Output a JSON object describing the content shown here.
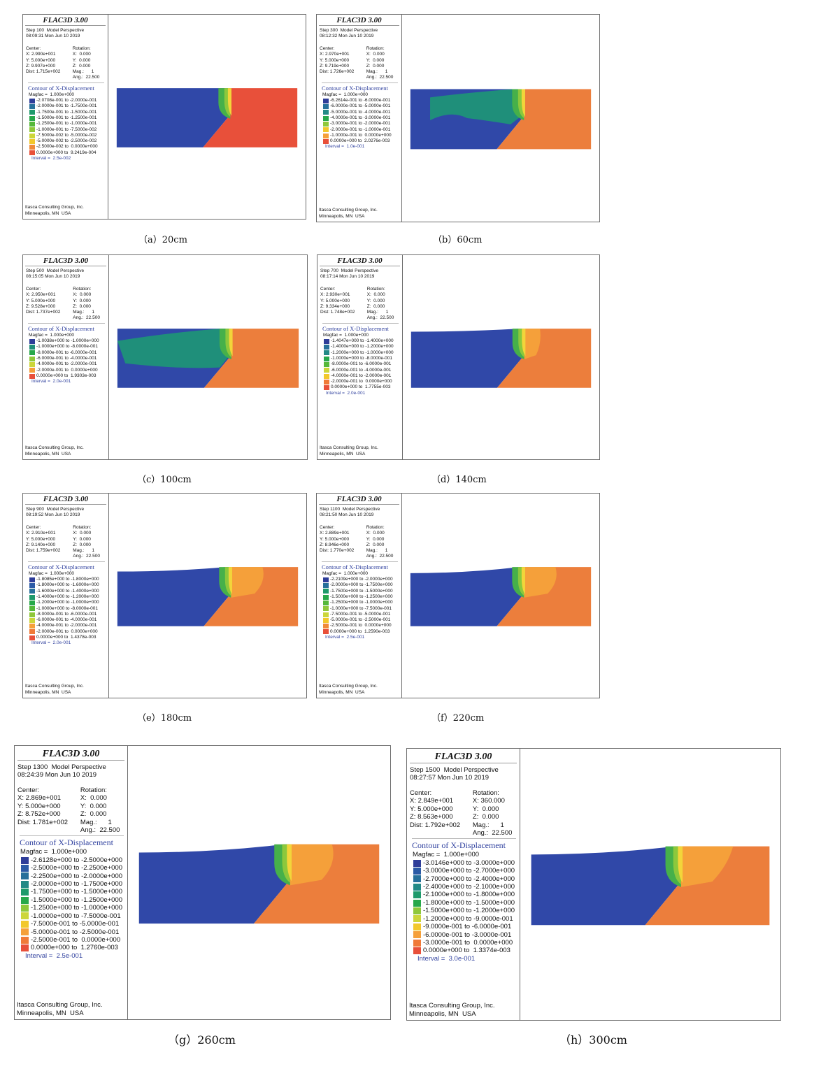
{
  "common": {
    "app_title": "FLAC3D 3.00",
    "center_label": "Center:",
    "rotation_label": "Rotation:",
    "contour_title": "Contour of X-Displacement",
    "magfac": "Magfac =  1.000e+000",
    "footer_line1": "Itasca Consulting Group, Inc.",
    "footer_line2": "Minneapolis, MN  USA"
  },
  "legend_colors": {
    "c13": [
      "#2e3d99",
      "#2b5aa6",
      "#27709b",
      "#238a86",
      "#1e9a6b",
      "#27a84a",
      "#55b83a",
      "#8fc83a",
      "#ccd63a",
      "#f2c82c",
      "#f5a03a",
      "#f07a38",
      "#e8503a"
    ],
    "c10": [
      "#2e3d99",
      "#27709b",
      "#1e9a6b",
      "#27a84a",
      "#55b83a",
      "#8fc83a",
      "#ccd63a",
      "#f2c82c",
      "#f08a3a",
      "#e8503a"
    ],
    "c7": [
      "#2e3d99",
      "#1f8f7a",
      "#27a84a",
      "#8fc83a",
      "#ccd63a",
      "#f5a03a",
      "#e8503a"
    ],
    "c6": [
      "#2e3d99",
      "#1f8f7a",
      "#55b83a",
      "#ccd63a",
      "#f5a03a",
      "#e8503a"
    ]
  },
  "panels": [
    {
      "caption": "（a）20cm",
      "step_line": "Step 100  Model Perspective",
      "date_line": "08:09:31 Mon Jun 10 2019",
      "view_rows": [
        [
          "X: 2.990e+001",
          "X:  0.000"
        ],
        [
          "Y: 5.000e+000",
          "Y:  0.000"
        ],
        [
          "Z: 9.907e+000",
          "Z:  0.000"
        ],
        [
          "Dist: 1.715e+002",
          "Mag.:      1"
        ],
        [
          "",
          "Ang.:  22.500"
        ]
      ],
      "legend": [
        "-2.0708e-001 to -2.0000e-001",
        "-2.0000e-001 to -1.7500e-001",
        "-1.7500e-001 to -1.5000e-001",
        "-1.5000e-001 to -1.2500e-001",
        "-1.2500e-001 to -1.0000e-001",
        "-1.0000e-001 to -7.5000e-002",
        "-7.5000e-002 to -5.0000e-002",
        "-5.0000e-002 to -2.5000e-002",
        "-2.5000e-002 to  0.0000e+000",
        "0.0000e+000 to  9.2419e-004"
      ],
      "legend_palette": "c10",
      "interval": "Interval =  2.5e-002",
      "plot": {
        "kind": "a"
      }
    },
    {
      "caption": "（b）60cm",
      "step_line": "Step 300  Model Perspective",
      "date_line": "08:12:32 Mon Jun 10 2019",
      "view_rows": [
        [
          "X: 2.970e+001",
          "X:  0.000"
        ],
        [
          "Y: 5.000e+000",
          "Y:  0.000"
        ],
        [
          "Z: 9.719e+000",
          "Z:  0.000"
        ],
        [
          "Dist: 1.726e+002",
          "Mag.:      1"
        ],
        [
          "",
          "Ang.:  22.500"
        ]
      ],
      "legend": [
        "-6.2614e-001 to -6.0000e-001",
        "-6.0000e-001 to -5.0000e-001",
        "-5.0000e-001 to -4.0000e-001",
        "-4.0000e-001 to -3.0000e-001",
        "-3.0000e-001 to -2.0000e-001",
        "-2.0000e-001 to -1.0000e-001",
        "-1.0000e-001 to  0.0000e+000",
        "0.0000e+000 to  2.0276e-003"
      ],
      "legend_palette": "c7b",
      "interval": "Interval =  1.0e-001",
      "plot": {
        "kind": "b"
      }
    },
    {
      "caption": "（c）100cm",
      "step_line": "Step 500  Model Perspective",
      "date_line": "08:15:05 Mon Jun 10 2019",
      "view_rows": [
        [
          "X: 2.950e+001",
          "X:  0.000"
        ],
        [
          "Y: 5.000e+000",
          "Y:  0.000"
        ],
        [
          "Z: 9.528e+000",
          "Z:  0.000"
        ],
        [
          "Dist: 1.737e+002",
          "Mag.:      1"
        ],
        [
          "",
          "Ang.:  22.500"
        ]
      ],
      "legend": [
        "-1.0038e+000 to -1.0000e+000",
        "-1.0000e+000 to -8.0000e-001",
        "-8.0000e-001 to -6.0000e-001",
        "-6.0000e-001 to -4.0000e-001",
        "-4.0000e-001 to -2.0000e-001",
        "-2.0000e-001 to  0.0000e+000",
        "0.0000e+000 to  1.9303e-003"
      ],
      "legend_palette": "c7",
      "interval": "Interval =  2.0e-001",
      "plot": {
        "kind": "c"
      }
    },
    {
      "caption": "（d）140cm",
      "step_line": "Step 700  Model Perspective",
      "date_line": "08:17:14 Mon Jun 10 2019",
      "view_rows": [
        [
          "X: 2.930e+001",
          "X:  0.000"
        ],
        [
          "Y: 5.000e+000",
          "Y:  0.000"
        ],
        [
          "Z: 9.334e+000",
          "Z:  0.000"
        ],
        [
          "Dist: 1.748e+002",
          "Mag.:      1"
        ],
        [
          "",
          "Ang.:  22.500"
        ]
      ],
      "legend": [
        "-1.4047e+000 to -1.4000e+000",
        "-1.4000e+000 to -1.2000e+000",
        "-1.2000e+000 to -1.0000e+000",
        "-1.0000e+000 to -8.0000e-001",
        "-8.0000e-001 to -6.0000e-001",
        "-6.0000e-001 to -4.0000e-001",
        "-4.0000e-001 to -2.0000e-001",
        "-2.0000e-001 to  0.0000e+000",
        "0.0000e+000 to  1.7755e-003"
      ],
      "legend_palette": "c9",
      "interval": "Interval =  2.0e-001",
      "plot": {
        "kind": "d"
      }
    },
    {
      "caption": "（e）180cm",
      "step_line": "Step 900  Model Perspective",
      "date_line": "08:19:52 Mon Jun 10 2019",
      "view_rows": [
        [
          "X: 2.910e+001",
          "X:  0.000"
        ],
        [
          "Y: 5.000e+000",
          "Y:  0.000"
        ],
        [
          "Z: 9.140e+000",
          "Z:  0.000"
        ],
        [
          "Dist: 1.759e+002",
          "Mag.:      1"
        ],
        [
          "",
          "Ang.:  22.500"
        ]
      ],
      "legend": [
        "-1.8085e+000 to -1.8000e+000",
        "-1.8000e+000 to -1.6000e+000",
        "-1.6000e+000 to -1.4000e+000",
        "-1.4000e+000 to -1.2000e+000",
        "-1.2000e+000 to -1.0000e+000",
        "-1.0000e+000 to -8.0000e-001",
        "-8.0000e-001 to -6.0000e-001",
        "-6.0000e-001 to -4.0000e-001",
        "-4.0000e-001 to -2.0000e-001",
        "-2.0000e-001 to  0.0000e+000",
        "0.0000e+000 to  1.4378e-003"
      ],
      "legend_palette": "c11",
      "interval": "Interval =  2.0e-001",
      "plot": {
        "kind": "e"
      }
    },
    {
      "caption": "（f）220cm",
      "step_line": "Step 1100  Model Perspective",
      "date_line": "08:21:50 Mon Jun 10 2019",
      "view_rows": [
        [
          "X: 2.889e+001",
          "X:  0.000"
        ],
        [
          "Y: 5.000e+000",
          "Y:  0.000"
        ],
        [
          "Z: 8.946e+000",
          "Z:  0.000"
        ],
        [
          "Dist: 1.770e+002",
          "Mag.:      1"
        ],
        [
          "",
          "Ang.:  22.500"
        ]
      ],
      "legend": [
        "-2.2109e+000 to -2.0000e+000",
        "-2.0000e+000 to -1.7500e+000",
        "-1.7500e+000 to -1.5000e+000",
        "-1.5000e+000 to -1.2500e+000",
        "-1.2500e+000 to -1.0000e+000",
        "-1.0000e+000 to -7.5000e-001",
        "-7.5000e-001 to -5.0000e-001",
        "-5.0000e-001 to -2.5000e-001",
        "-2.5000e-001 to  0.0000e+000",
        "0.0000e+000 to  1.2590e-003"
      ],
      "legend_palette": "c10",
      "interval": "Interval =  2.5e-001",
      "plot": {
        "kind": "f"
      }
    },
    {
      "caption": "（g）260cm",
      "step_line": "Step 1300  Model Perspective",
      "date_line": "08:24:39 Mon Jun 10 2019",
      "view_rows": [
        [
          "X: 2.869e+001",
          "X:  0.000"
        ],
        [
          "Y: 5.000e+000",
          "Y:  0.000"
        ],
        [
          "Z: 8.752e+000",
          "Z:  0.000"
        ],
        [
          "Dist: 1.781e+002",
          "Mag.:      1"
        ],
        [
          "",
          "Ang.:  22.500"
        ]
      ],
      "legend": [
        "-2.6128e+000 to -2.5000e+000",
        "-2.5000e+000 to -2.2500e+000",
        "-2.2500e+000 to -2.0000e+000",
        "-2.0000e+000 to -1.7500e+000",
        "-1.7500e+000 to -1.5000e+000",
        "-1.5000e+000 to -1.2500e+000",
        "-1.2500e+000 to -1.0000e+000",
        "-1.0000e+000 to -7.5000e-001",
        "-7.5000e-001 to -5.0000e-001",
        "-5.0000e-001 to -2.5000e-001",
        "-2.5000e-001 to  0.0000e+000",
        "0.0000e+000 to  1.2760e-003"
      ],
      "legend_palette": "c12",
      "interval": "Interval =  2.5e-001",
      "plot": {
        "kind": "g"
      }
    },
    {
      "caption": "（h）300cm",
      "step_line": "Step 1500  Model Perspective",
      "date_line": "08:27:57 Mon Jun 10 2019",
      "view_rows": [
        [
          "X: 2.849e+001",
          "X: 360.000"
        ],
        [
          "Y: 5.000e+000",
          "Y:  0.000"
        ],
        [
          "Z: 8.563e+000",
          "Z:  0.000"
        ],
        [
          "Dist: 1.792e+002",
          "Mag.:      1"
        ],
        [
          "",
          "Ang.:  22.500"
        ]
      ],
      "legend": [
        "-3.0146e+000 to -3.0000e+000",
        "-3.0000e+000 to -2.7000e+000",
        "-2.7000e+000 to -2.4000e+000",
        "-2.4000e+000 to -2.1000e+000",
        "-2.1000e+000 to -1.8000e+000",
        "-1.8000e+000 to -1.5000e+000",
        "-1.5000e+000 to -1.2000e+000",
        "-1.2000e+000 to -9.0000e-001",
        "-9.0000e-001 to -6.0000e-001",
        "-6.0000e-001 to -3.0000e-001",
        "-3.0000e-001 to  0.0000e+000",
        "0.0000e+000 to  1.3374e-003"
      ],
      "legend_palette": "c12",
      "interval": "Interval =  3.0e-001",
      "plot": {
        "kind": "h"
      }
    }
  ]
}
